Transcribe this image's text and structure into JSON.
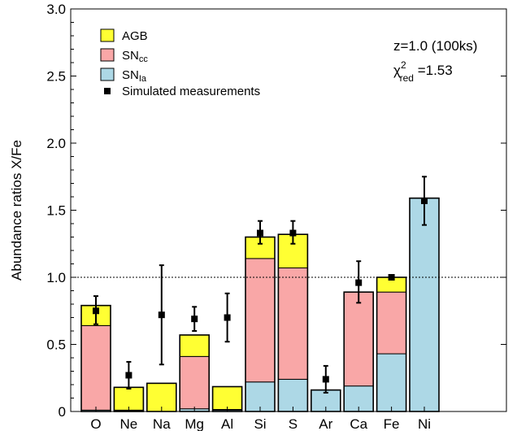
{
  "chart_data": {
    "type": "bar",
    "stacked": true,
    "ylabel": "Abundance ratios X/Fe",
    "ylim": [
      0,
      3.0
    ],
    "yticks": [
      0,
      0.5,
      1.0,
      1.5,
      2.0,
      2.5,
      3.0
    ],
    "ytick_labels": [
      "0",
      "0.5",
      "1.0",
      "1.5",
      "2.0",
      "2.5",
      "3.0"
    ],
    "reference_line": 1.0,
    "categories": [
      "O",
      "Ne",
      "Na",
      "Mg",
      "Al",
      "Si",
      "S",
      "Ar",
      "Ca",
      "Fe",
      "Ni"
    ],
    "series": [
      {
        "name": "SN",
        "subscript": "Ia",
        "color": "#add8e6",
        "values": [
          0.01,
          0.005,
          0.0,
          0.02,
          0.01,
          0.22,
          0.24,
          0.16,
          0.19,
          0.43,
          1.59
        ]
      },
      {
        "name": "SN",
        "subscript": "cc",
        "color": "#f9a7a7",
        "values": [
          0.63,
          0.005,
          0.0,
          0.39,
          0.005,
          0.92,
          0.83,
          0.0,
          0.7,
          0.46,
          0.0
        ]
      },
      {
        "name": "AGB",
        "color": "#ffff33",
        "values": [
          0.15,
          0.17,
          0.21,
          0.16,
          0.17,
          0.16,
          0.25,
          0.0,
          0.0,
          0.11,
          0.0
        ]
      }
    ],
    "measurements": {
      "name": "Simulated measurements",
      "values": [
        0.75,
        0.27,
        0.72,
        0.69,
        0.7,
        1.33,
        1.33,
        0.24,
        0.96,
        1.0,
        1.57
      ],
      "err_low": [
        0.1,
        0.1,
        0.37,
        0.09,
        0.18,
        0.08,
        0.08,
        0.1,
        0.15,
        0.0,
        0.18
      ],
      "err_high": [
        0.11,
        0.1,
        0.37,
        0.09,
        0.18,
        0.09,
        0.09,
        0.1,
        0.16,
        0.0,
        0.18
      ]
    },
    "legend": {
      "position": "top-left",
      "entries": [
        {
          "label": "AGB",
          "color": "#ffff33"
        },
        {
          "label": "SN",
          "sub": "cc",
          "color": "#f9a7a7"
        },
        {
          "label": "SN",
          "sub": "Ia",
          "color": "#add8e6"
        },
        {
          "label": "Simulated measurements",
          "marker": "square"
        }
      ]
    },
    "annotation": {
      "line1": "z=1.0 (100ks)",
      "chi_symbol": "χ",
      "chi_sup": "2",
      "chi_sub": "red",
      "chi_value": " =1.53"
    },
    "grid": false
  }
}
